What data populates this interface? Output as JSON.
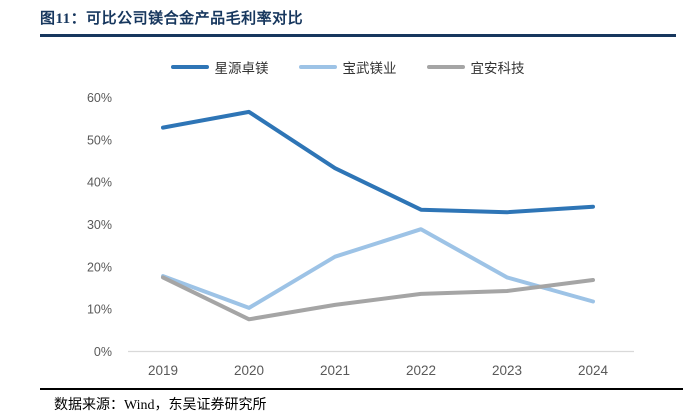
{
  "figure": {
    "title": "图11：可比公司镁合金产品毛利率对比",
    "source_note": "数据来源：Wind，东吴证券研究所"
  },
  "colors": {
    "title_navy": "#17375e",
    "header_rule": "#17375e",
    "footer_rule": "#000000",
    "axis_line": "#d9d9d9",
    "tick_label": "#595959",
    "legend_label": "#333333",
    "series_dark_blue": "#2e75b6",
    "series_light_blue": "#9dc3e6",
    "series_gray": "#a5a5a5"
  },
  "chart_data": {
    "type": "line",
    "title": "可比公司镁合金产品毛利率对比",
    "categories": [
      "2019",
      "2020",
      "2021",
      "2022",
      "2023",
      "2024"
    ],
    "series": [
      {
        "name": "星源卓镁",
        "color": "#2e75b6",
        "values": [
          52.9,
          56.6,
          43.3,
          33.5,
          32.9,
          34.2
        ]
      },
      {
        "name": "宝武镁业",
        "color": "#9dc3e6",
        "values": [
          17.8,
          10.3,
          22.4,
          28.9,
          17.5,
          11.8
        ]
      },
      {
        "name": "宜安科技",
        "color": "#a5a5a5",
        "values": [
          17.5,
          7.6,
          11.0,
          13.6,
          14.3,
          16.9
        ]
      }
    ],
    "xlabel": "",
    "ylabel": "",
    "ylim": [
      0,
      60
    ],
    "ytick_step": 10,
    "ytick_labels": [
      "0%",
      "10%",
      "20%",
      "30%",
      "40%",
      "50%",
      "60%"
    ],
    "legend_position": "top-center",
    "grid": false
  }
}
